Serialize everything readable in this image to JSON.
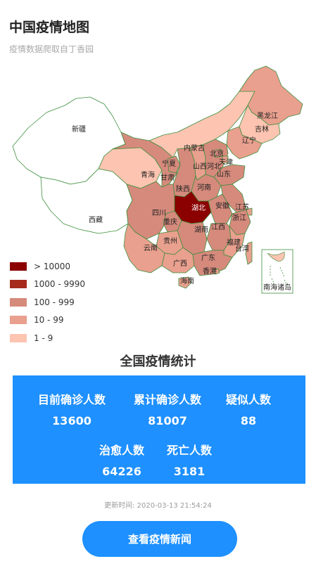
{
  "header": {
    "title": "中国疫情地图",
    "subtitle": "疫情数据爬取自丁香园"
  },
  "map": {
    "labels": {
      "xinjiang": "新疆",
      "xizang": "西藏",
      "heilongjiang": "黑龙江",
      "jilin": "吉林",
      "liaoning": "辽宁",
      "neimenggu": "内蒙古",
      "beijing": "北京",
      "hebei": "河北",
      "tianjin": "天津",
      "shandong": "山东",
      "shanxi": "山西",
      "ningxia": "宁夏",
      "qinghai": "青海",
      "gansu": "甘肃",
      "shaanxi": "陕西",
      "henan": "河南",
      "anhui": "安徽",
      "jiangsu": "江苏",
      "zhejiang": "浙江",
      "hubei": "湖北",
      "sichuan": "四川",
      "chongqing": "重庆",
      "hunan": "湖南",
      "jiangxi": "江西",
      "fujian": "福建",
      "taiwan": "台湾",
      "guizhou": "贵州",
      "yunnan": "云南",
      "guangxi": "广西",
      "guangdong": "广东",
      "hongkong": "香港",
      "hainan": "海南",
      "nanhai": "南海诸岛"
    },
    "colors": {
      "c10000": "#8b0000",
      "c1000": "#a52a1d",
      "c100": "#d58a7c",
      "c10": "#e9a08e",
      "c1": "#fcc4b1",
      "none": "#ffffff"
    }
  },
  "legend": [
    {
      "label": "> 10000",
      "color": "#8b0000"
    },
    {
      "label": "1000 - 9990",
      "color": "#a52a1d"
    },
    {
      "label": "100 - 999",
      "color": "#d58a7c"
    },
    {
      "label": "10 - 99",
      "color": "#e9a08e"
    },
    {
      "label": "1 - 9",
      "color": "#fcc4b1"
    }
  ],
  "stats": {
    "title": "全国疫情统计",
    "current_confirmed_label": "目前确诊人数",
    "current_confirmed_value": "13600",
    "total_confirmed_label": "累计确诊人数",
    "total_confirmed_value": "81007",
    "suspected_label": "疑似人数",
    "suspected_value": "88",
    "cured_label": "治愈人数",
    "cured_value": "64226",
    "death_label": "死亡人数",
    "death_value": "3181"
  },
  "update_time": "更新时间: 2020-03-13 21:54:24",
  "news_button_label": "查看疫情新闻"
}
